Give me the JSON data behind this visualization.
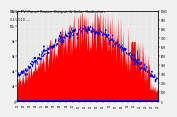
{
  "title": "Total PV Panel Power Output & Solar Radiation",
  "subtitle": "04/2010 ---",
  "bg_color": "#f0f0f0",
  "plot_bg": "#e8e8e8",
  "grid_color": "#aaaaaa",
  "red_fill": "#ff0000",
  "blue_line": "#0000dd",
  "xlim": [
    0,
    287
  ],
  "ylim_left": [
    0,
    12000
  ],
  "ylim_right": [
    0,
    1000
  ],
  "n_points": 288
}
